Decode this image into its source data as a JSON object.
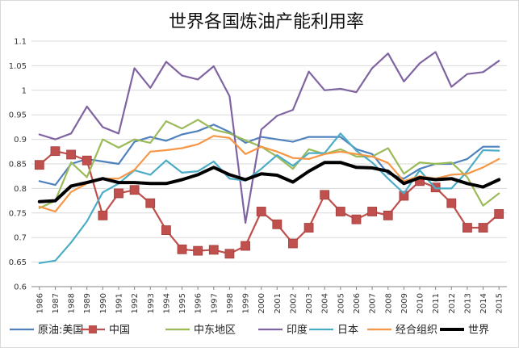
{
  "chart_data": {
    "type": "line",
    "title": "世界各国炼油产能利用率",
    "xlabel": "",
    "ylabel": "",
    "ylim": [
      0.6,
      1.1
    ],
    "yticks": [
      0.6,
      0.65,
      0.7,
      0.75,
      0.8,
      0.85,
      0.9,
      0.95,
      1,
      1.05,
      1.1
    ],
    "ytick_labels": [
      "0.6",
      "0.65",
      "0.7",
      "0.75",
      "0.8",
      "0.85",
      "0.9",
      "0.95",
      "1",
      "1.05",
      "1.1"
    ],
    "grid": true,
    "legend_position": "bottom",
    "categories": [
      "1986",
      "1987",
      "1988",
      "1989",
      "1990",
      "1991",
      "1992",
      "1993",
      "1994",
      "1995",
      "1996",
      "1997",
      "1998",
      "1999",
      "2000",
      "2001",
      "2002",
      "2003",
      "2004",
      "2005",
      "2006",
      "2007",
      "2008",
      "2009",
      "2010",
      "2011",
      "2012",
      "2013",
      "2014",
      "2015"
    ],
    "series": [
      {
        "name": "原油:美国",
        "color": "#4f81bd",
        "marker": "none",
        "values": [
          0.815,
          0.807,
          0.85,
          0.86,
          0.855,
          0.85,
          0.895,
          0.905,
          0.897,
          0.91,
          0.917,
          0.93,
          0.915,
          0.893,
          0.905,
          0.9,
          0.895,
          0.905,
          0.905,
          0.905,
          0.88,
          0.87,
          0.83,
          0.82,
          0.84,
          0.85,
          0.85,
          0.86,
          0.885,
          0.885
        ]
      },
      {
        "name": "中国",
        "color": "#c0504d",
        "marker": "square",
        "values": [
          0.848,
          0.876,
          0.869,
          0.857,
          0.745,
          0.79,
          0.797,
          0.77,
          0.715,
          0.676,
          0.673,
          0.675,
          0.667,
          0.683,
          0.753,
          0.727,
          0.688,
          0.72,
          0.787,
          0.753,
          0.737,
          0.753,
          0.745,
          0.785,
          0.815,
          0.802,
          0.77,
          0.72,
          0.72,
          0.748
        ]
      },
      {
        "name": "中东地区",
        "color": "#9bbb59",
        "marker": "none",
        "values": [
          0.76,
          0.775,
          0.853,
          0.823,
          0.9,
          0.883,
          0.9,
          0.893,
          0.937,
          0.922,
          0.94,
          0.92,
          0.912,
          0.898,
          0.885,
          0.865,
          0.84,
          0.88,
          0.87,
          0.88,
          0.865,
          0.865,
          0.882,
          0.83,
          0.853,
          0.85,
          0.853,
          0.823,
          0.765,
          0.79
        ]
      },
      {
        "name": "印度",
        "color": "#8064a2",
        "marker": "none",
        "values": [
          0.91,
          0.9,
          0.912,
          0.967,
          0.925,
          0.912,
          1.045,
          1.005,
          1.058,
          1.03,
          1.022,
          1.049,
          0.988,
          0.73,
          0.92,
          0.948,
          0.96,
          1.038,
          1.0,
          1.003,
          0.996,
          1.045,
          1.075,
          1.018,
          1.055,
          1.078,
          1.007,
          1.033,
          1.037,
          1.06
        ]
      },
      {
        "name": "日本",
        "color": "#4bacc6",
        "marker": "none",
        "values": [
          0.648,
          0.653,
          0.69,
          0.733,
          0.792,
          0.81,
          0.837,
          0.828,
          0.857,
          0.832,
          0.835,
          0.855,
          0.82,
          0.816,
          0.84,
          0.868,
          0.846,
          0.872,
          0.872,
          0.912,
          0.877,
          0.853,
          0.82,
          0.79,
          0.837,
          0.8,
          0.8,
          0.835,
          0.878,
          0.877
        ]
      },
      {
        "name": "经合组织",
        "color": "#f79646",
        "marker": "none",
        "values": [
          0.763,
          0.753,
          0.793,
          0.81,
          0.82,
          0.82,
          0.838,
          0.875,
          0.878,
          0.882,
          0.89,
          0.907,
          0.903,
          0.87,
          0.885,
          0.875,
          0.862,
          0.86,
          0.87,
          0.875,
          0.87,
          0.865,
          0.852,
          0.815,
          0.825,
          0.82,
          0.828,
          0.83,
          0.843,
          0.86
        ]
      },
      {
        "name": "世界",
        "color": "#000000",
        "marker": "none",
        "bold": true,
        "values": [
          0.773,
          0.775,
          0.805,
          0.812,
          0.82,
          0.812,
          0.812,
          0.81,
          0.81,
          0.818,
          0.828,
          0.843,
          0.828,
          0.818,
          0.83,
          0.827,
          0.813,
          0.835,
          0.853,
          0.853,
          0.843,
          0.842,
          0.835,
          0.81,
          0.822,
          0.818,
          0.82,
          0.81,
          0.803,
          0.818
        ]
      }
    ]
  }
}
